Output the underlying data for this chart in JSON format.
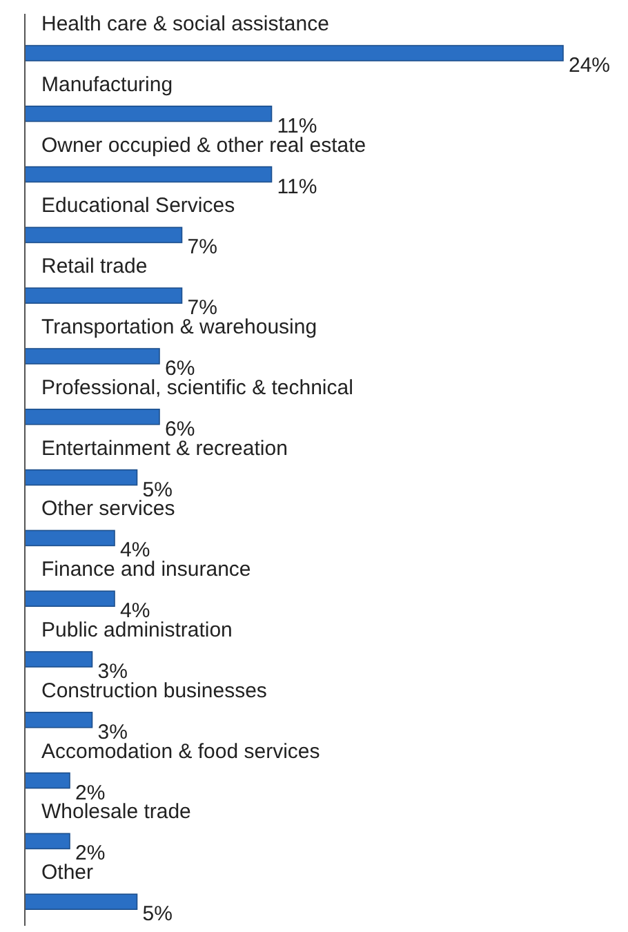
{
  "chart_data": {
    "type": "bar",
    "orientation": "horizontal",
    "tick_labels": false,
    "categories": [
      "Health care & social assistance",
      "Manufacturing",
      "Owner occupied & other real estate",
      "Educational Services",
      "Retail trade",
      "Transportation & warehousing",
      "Professional, scientific & technical",
      "Entertainment & recreation",
      "Other services",
      "Finance and insurance",
      "Public administration",
      "Construction businesses",
      "Accomodation & food services",
      "Wholesale trade",
      "Other"
    ],
    "values": [
      24,
      11,
      11,
      7,
      7,
      6,
      6,
      5,
      4,
      4,
      3,
      3,
      2,
      2,
      5
    ],
    "value_labels": [
      "24%",
      "11%",
      "11%",
      "7%",
      "7%",
      "6%",
      "6%",
      "5%",
      "4%",
      "4%",
      "3%",
      "3%",
      "2%",
      "2%",
      "5%"
    ],
    "color": "#2a6fc4"
  }
}
